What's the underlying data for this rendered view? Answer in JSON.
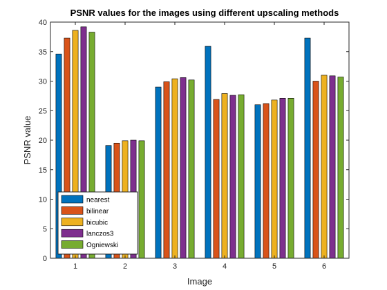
{
  "chart_data": {
    "type": "bar",
    "title": "PSNR values for the images using different upscaling methods",
    "xlabel": "Image",
    "ylabel": "PSNR value",
    "categories": [
      "1",
      "2",
      "3",
      "4",
      "5",
      "6"
    ],
    "ylim": [
      0,
      40
    ],
    "yticks": [
      "0",
      "5",
      "10",
      "15",
      "20",
      "25",
      "30",
      "35",
      "40"
    ],
    "grid": false,
    "legend_position": "bottom-left",
    "series": [
      {
        "name": "nearest",
        "color": "#0072BD",
        "values": [
          34.6,
          19.1,
          29.0,
          35.9,
          26.0,
          37.3
        ]
      },
      {
        "name": "bilinear",
        "color": "#D95319",
        "values": [
          37.3,
          19.5,
          29.9,
          26.9,
          26.2,
          30.0
        ]
      },
      {
        "name": "bicubic",
        "color": "#EDB120",
        "values": [
          38.6,
          19.9,
          30.4,
          27.9,
          26.8,
          31.0
        ]
      },
      {
        "name": "lanczos3",
        "color": "#7E2F8E",
        "values": [
          39.2,
          20.0,
          30.6,
          27.6,
          27.1,
          30.9
        ]
      },
      {
        "name": "Ogniewski",
        "color": "#77AC30",
        "values": [
          38.3,
          19.9,
          30.2,
          27.7,
          27.1,
          30.7
        ]
      }
    ]
  }
}
